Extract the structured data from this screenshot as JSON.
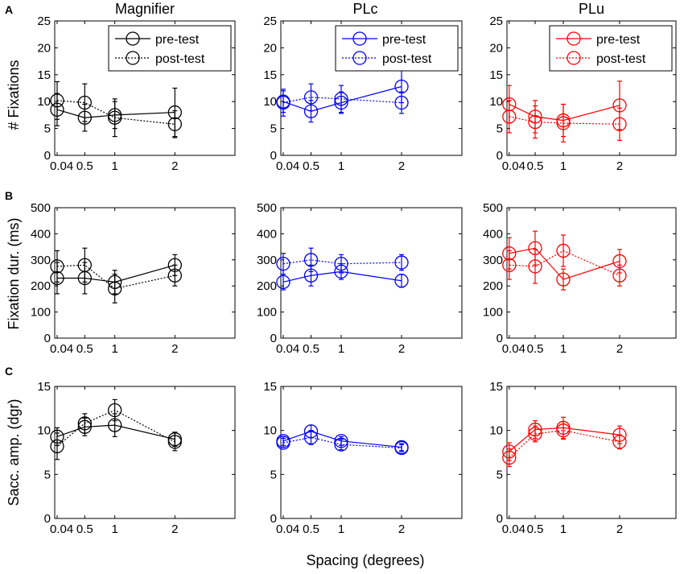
{
  "figure": {
    "row_letters": [
      "A",
      "B",
      "C"
    ],
    "column_titles": [
      "Magnifier",
      "PLc",
      "PLu"
    ],
    "xlabel": "Spacing (degrees)",
    "legend": {
      "pre": "pre-test",
      "post": "post-test"
    },
    "colors": {
      "Magnifier": "#000000",
      "PLc": "#0000ff",
      "PLu": "#ff0000"
    }
  },
  "chart_data": [
    {
      "type": "line",
      "panel": "A-Magnifier",
      "title": "Magnifier",
      "ylabel": "# Fixations",
      "xlim": [
        0,
        3
      ],
      "ylim": [
        0,
        25
      ],
      "xticks": [
        0.04,
        0.5,
        1,
        2
      ],
      "xticklabels": [
        "0.04",
        "0.5",
        "1",
        "2"
      ],
      "yticks": [
        0,
        5,
        10,
        15,
        20,
        25
      ],
      "legend": true,
      "series": [
        {
          "name": "pre-test",
          "style": "solid",
          "x": [
            0.04,
            0.5,
            1,
            2
          ],
          "values": [
            8.5,
            7.0,
            7.5,
            8.0
          ],
          "err": [
            3.0,
            2.5,
            2.5,
            4.5
          ]
        },
        {
          "name": "post-test",
          "style": "dotted",
          "x": [
            0.04,
            0.5,
            1,
            2
          ],
          "values": [
            10.2,
            9.8,
            7.0,
            5.8
          ],
          "err": [
            3.5,
            3.5,
            3.5,
            2.5
          ]
        }
      ]
    },
    {
      "type": "line",
      "panel": "A-PLc",
      "title": "PLc",
      "ylabel": "",
      "xlim": [
        0,
        3
      ],
      "ylim": [
        0,
        25
      ],
      "xticks": [
        0.04,
        0.5,
        1,
        2
      ],
      "xticklabels": [
        "0.04",
        "0.5",
        "1",
        "2"
      ],
      "yticks": [
        0,
        5,
        10,
        15,
        20,
        25
      ],
      "legend": true,
      "series": [
        {
          "name": "pre-test",
          "style": "solid",
          "x": [
            0.04,
            0.5,
            1,
            2
          ],
          "values": [
            10.0,
            8.2,
            9.8,
            12.8
          ],
          "err": [
            2.0,
            2.0,
            2.0,
            3.0
          ]
        },
        {
          "name": "post-test",
          "style": "dotted",
          "x": [
            0.04,
            0.5,
            1,
            2
          ],
          "values": [
            9.8,
            10.8,
            10.5,
            9.8
          ],
          "err": [
            2.5,
            2.5,
            2.5,
            2.0
          ]
        }
      ]
    },
    {
      "type": "line",
      "panel": "A-PLu",
      "title": "PLu",
      "ylabel": "",
      "xlim": [
        0,
        3
      ],
      "ylim": [
        0,
        25
      ],
      "xticks": [
        0.04,
        0.5,
        1,
        2
      ],
      "xticklabels": [
        "0.04",
        "0.5",
        "1",
        "2"
      ],
      "yticks": [
        0,
        5,
        10,
        15,
        20,
        25
      ],
      "legend": true,
      "series": [
        {
          "name": "pre-test",
          "style": "solid",
          "x": [
            0.04,
            0.5,
            1,
            2
          ],
          "values": [
            9.5,
            7.2,
            6.5,
            9.3
          ],
          "err": [
            3.5,
            3.0,
            3.0,
            4.5
          ]
        },
        {
          "name": "post-test",
          "style": "dotted",
          "x": [
            0.04,
            0.5,
            1,
            2
          ],
          "values": [
            7.2,
            6.2,
            6.0,
            5.8
          ],
          "err": [
            3.0,
            3.0,
            3.5,
            3.0
          ]
        }
      ]
    },
    {
      "type": "line",
      "panel": "B-Magnifier",
      "title": "",
      "ylabel": "Fixation dur. (ms)",
      "xlim": [
        0,
        3
      ],
      "ylim": [
        0,
        500
      ],
      "xticks": [
        0.04,
        0.5,
        1,
        2
      ],
      "xticklabels": [
        "0.04",
        "0.5",
        "1",
        "2"
      ],
      "yticks": [
        0,
        100,
        200,
        300,
        400,
        500
      ],
      "legend": false,
      "series": [
        {
          "name": "pre-test",
          "style": "solid",
          "x": [
            0.04,
            0.5,
            1,
            2
          ],
          "values": [
            230,
            230,
            215,
            280
          ],
          "err": [
            60,
            60,
            45,
            40
          ]
        },
        {
          "name": "post-test",
          "style": "dotted",
          "x": [
            0.04,
            0.5,
            1,
            2
          ],
          "values": [
            275,
            280,
            190,
            240
          ],
          "err": [
            60,
            65,
            55,
            40
          ]
        }
      ]
    },
    {
      "type": "line",
      "panel": "B-PLc",
      "title": "",
      "ylabel": "",
      "xlim": [
        0,
        3
      ],
      "ylim": [
        0,
        500
      ],
      "xticks": [
        0.04,
        0.5,
        1,
        2
      ],
      "xticklabels": [
        "0.04",
        "0.5",
        "1",
        "2"
      ],
      "yticks": [
        0,
        100,
        200,
        300,
        400,
        500
      ],
      "legend": false,
      "series": [
        {
          "name": "pre-test",
          "style": "solid",
          "x": [
            0.04,
            0.5,
            1,
            2
          ],
          "values": [
            215,
            240,
            255,
            220
          ],
          "err": [
            30,
            40,
            30,
            25
          ]
        },
        {
          "name": "post-test",
          "style": "dotted",
          "x": [
            0.04,
            0.5,
            1,
            2
          ],
          "values": [
            285,
            300,
            285,
            290
          ],
          "err": [
            40,
            45,
            35,
            30
          ]
        }
      ]
    },
    {
      "type": "line",
      "panel": "B-PLu",
      "title": "",
      "ylabel": "",
      "xlim": [
        0,
        3
      ],
      "ylim": [
        0,
        500
      ],
      "xticks": [
        0.04,
        0.5,
        1,
        2
      ],
      "xticklabels": [
        "0.04",
        "0.5",
        "1",
        "2"
      ],
      "yticks": [
        0,
        100,
        200,
        300,
        400,
        500
      ],
      "legend": false,
      "series": [
        {
          "name": "pre-test",
          "style": "solid",
          "x": [
            0.04,
            0.5,
            1,
            2
          ],
          "values": [
            325,
            345,
            225,
            295
          ],
          "err": [
            60,
            65,
            40,
            45
          ]
        },
        {
          "name": "post-test",
          "style": "dotted",
          "x": [
            0.04,
            0.5,
            1,
            2
          ],
          "values": [
            280,
            275,
            335,
            240
          ],
          "err": [
            55,
            65,
            60,
            40
          ]
        }
      ]
    },
    {
      "type": "line",
      "panel": "C-Magnifier",
      "title": "",
      "ylabel": "Sacc. amp. (dgr)",
      "xlim": [
        0,
        3
      ],
      "ylim": [
        0,
        15
      ],
      "xticks": [
        0.04,
        0.5,
        1,
        2
      ],
      "xticklabels": [
        "0.04",
        "0.5",
        "1",
        "2"
      ],
      "yticks": [
        0,
        5,
        10,
        15
      ],
      "legend": false,
      "series": [
        {
          "name": "pre-test",
          "style": "solid",
          "x": [
            0.04,
            0.5,
            1,
            2
          ],
          "values": [
            9.3,
            10.4,
            10.6,
            9.0
          ],
          "err": [
            1.0,
            1.0,
            1.3,
            0.8
          ]
        },
        {
          "name": "post-test",
          "style": "dotted",
          "x": [
            0.04,
            0.5,
            1,
            2
          ],
          "values": [
            8.2,
            10.8,
            12.3,
            8.7
          ],
          "err": [
            1.5,
            1.1,
            1.2,
            1.0
          ]
        }
      ]
    },
    {
      "type": "line",
      "panel": "C-PLc",
      "title": "",
      "ylabel": "",
      "xlim": [
        0,
        3
      ],
      "ylim": [
        0,
        15
      ],
      "xticks": [
        0.04,
        0.5,
        1,
        2
      ],
      "xticklabels": [
        "0.04",
        "0.5",
        "1",
        "2"
      ],
      "yticks": [
        0,
        5,
        10,
        15
      ],
      "legend": false,
      "series": [
        {
          "name": "pre-test",
          "style": "solid",
          "x": [
            0.04,
            0.5,
            1,
            2
          ],
          "values": [
            8.8,
            9.9,
            8.8,
            8.1
          ],
          "err": [
            0.5,
            0.7,
            0.5,
            0.4
          ]
        },
        {
          "name": "post-test",
          "style": "dotted",
          "x": [
            0.04,
            0.5,
            1,
            2
          ],
          "values": [
            8.6,
            9.2,
            8.4,
            8.0
          ],
          "err": [
            0.5,
            0.8,
            0.6,
            0.4
          ]
        }
      ]
    },
    {
      "type": "line",
      "panel": "C-PLu",
      "title": "",
      "ylabel": "",
      "xlim": [
        0,
        3
      ],
      "ylim": [
        0,
        15
      ],
      "xticks": [
        0.04,
        0.5,
        1,
        2
      ],
      "xticklabels": [
        "0.04",
        "0.5",
        "1",
        "2"
      ],
      "yticks": [
        0,
        5,
        10,
        15
      ],
      "legend": false,
      "series": [
        {
          "name": "pre-test",
          "style": "solid",
          "x": [
            0.04,
            0.5,
            1,
            2
          ],
          "values": [
            7.6,
            10.1,
            10.3,
            9.5
          ],
          "err": [
            1.0,
            1.0,
            1.2,
            1.0
          ]
        },
        {
          "name": "post-test",
          "style": "dotted",
          "x": [
            0.04,
            0.5,
            1,
            2
          ],
          "values": [
            6.9,
            9.6,
            10.0,
            8.7
          ],
          "err": [
            1.0,
            0.9,
            1.0,
            0.8
          ]
        }
      ]
    }
  ]
}
